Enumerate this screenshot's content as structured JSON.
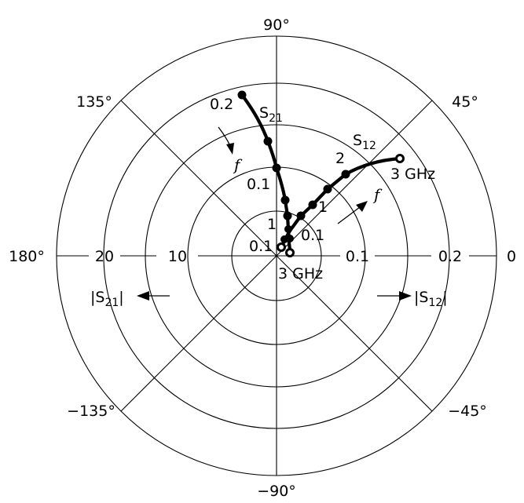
{
  "angle_labels": {
    "deg90": "90°",
    "deg45": "45°",
    "deg135": "135°",
    "deg180": "180°",
    "deg0": "0",
    "degm45": "−45°",
    "degm135": "−135°",
    "degm90": "−90°"
  },
  "left_scale": {
    "outer": "20",
    "inner": "10",
    "label_open": "|S",
    "label_sub": "21",
    "label_close": "|"
  },
  "right_scale": {
    "inner": "0.1",
    "outer": "0.2",
    "label_open": "|S",
    "label_sub": "12",
    "label_close": "|"
  },
  "s21_trace": {
    "name": "S",
    "name_sub": "21",
    "freq_label": "f",
    "labels": {
      "outer": "0.2",
      "middle": "0.1",
      "one": "1",
      "low": "0.1",
      "end": "3 GHz"
    }
  },
  "s12_trace": {
    "name": "S",
    "name_sub": "12",
    "freq_label": "f",
    "labels": {
      "two": "2",
      "one": "1",
      "low": "0.1",
      "end": "3 GHz"
    }
  }
}
